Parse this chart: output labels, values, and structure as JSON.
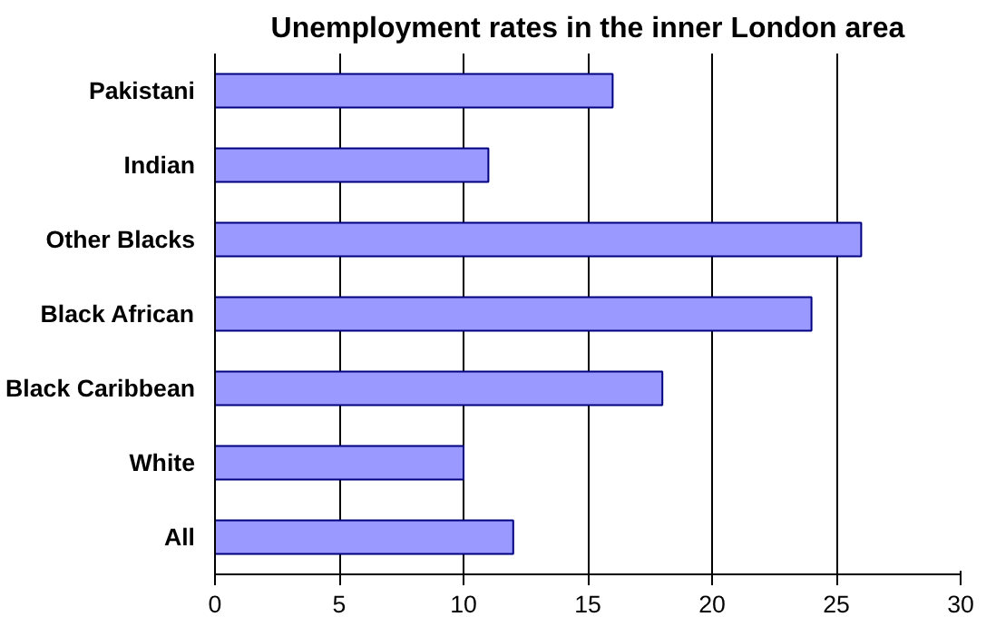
{
  "chart_data": {
    "type": "bar",
    "orientation": "horizontal",
    "title": "Unemployment rates in the inner London area",
    "categories": [
      "Pakistani",
      "Indian",
      "Other Blacks",
      "Black African",
      "Black Caribbean",
      "White",
      "All"
    ],
    "values": [
      16,
      11,
      26,
      24,
      18,
      10,
      12
    ],
    "color": "#9999ff",
    "xlim": [
      0,
      30
    ],
    "xticks": [
      0,
      5,
      10,
      15,
      20,
      25,
      30
    ],
    "grid": "x"
  }
}
